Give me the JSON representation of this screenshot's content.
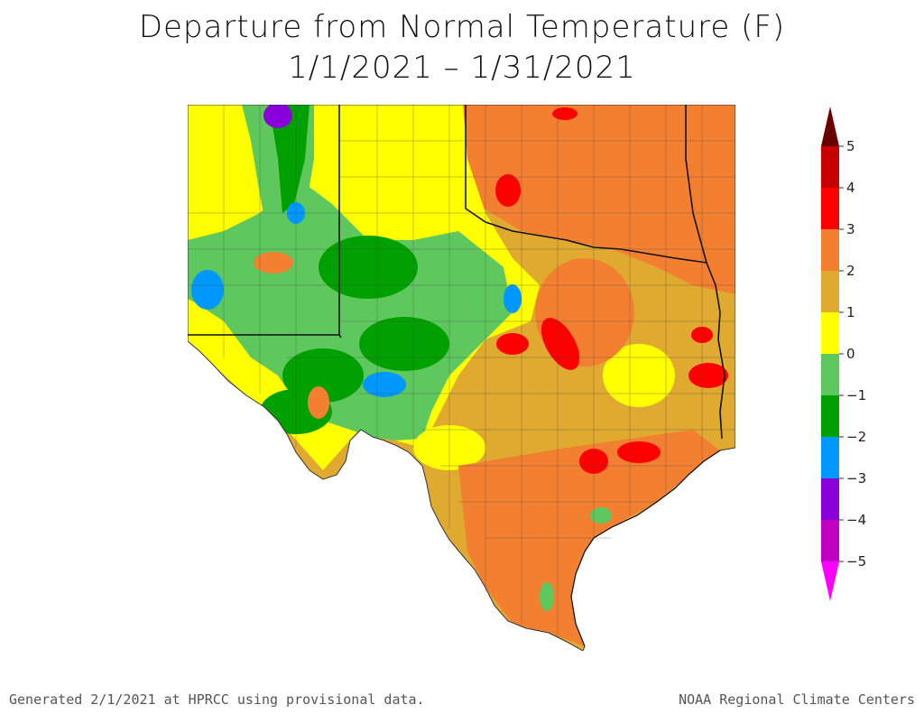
{
  "title": {
    "line1": "Departure from Normal Temperature (F)",
    "line2": "1/1/2021 – 1/31/2021"
  },
  "legend": {
    "labels": [
      "5",
      "4",
      "3",
      "2",
      "1",
      "0",
      "−1",
      "−2",
      "−3",
      "−4",
      "−5"
    ],
    "colors": [
      "#6b0000",
      "#c80000",
      "#ff0000",
      "#f28030",
      "#e0aa30",
      "#ffff00",
      "#5ec85e",
      "#00a000",
      "#0098ff",
      "#8a00d8",
      "#c000c0",
      "#ff00ff"
    ]
  },
  "footer": {
    "left": "Generated 2/1/2021 at HPRCC using provisional data.",
    "right": "NOAA Regional Climate Centers"
  }
}
